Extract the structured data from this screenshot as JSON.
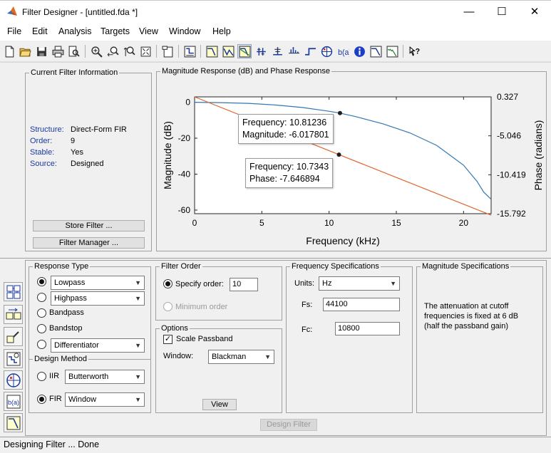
{
  "window": {
    "title": "Filter Designer -  [untitled.fda *]",
    "minimize": "—",
    "maximize": "☐",
    "close": "✕"
  },
  "menu": [
    "File",
    "Edit",
    "Analysis",
    "Targets",
    "View",
    "Window",
    "Help"
  ],
  "toolbar_icons": [
    "new-icon",
    "open-icon",
    "save-icon",
    "print-icon",
    "print-preview-icon",
    "zoom-in-icon",
    "zoom-x-icon",
    "zoom-y-icon",
    "full-view-icon",
    "new-figure-icon",
    "filter-specs-icon",
    "magnitude-icon",
    "phase-icon",
    "mag-phase-icon",
    "group-delay-icon",
    "phase-delay-icon",
    "impulse-icon",
    "step-icon",
    "pole-zero-icon",
    "coefficients-icon",
    "info-icon",
    "magnitude-estimate-icon",
    "noise-power-icon",
    "whats-this-icon"
  ],
  "current_filter": {
    "title": "Current Filter Information",
    "rows": [
      {
        "label": "Structure:",
        "value": "Direct-Form FIR"
      },
      {
        "label": "Order:",
        "value": "9"
      },
      {
        "label": "Stable:",
        "value": "Yes"
      },
      {
        "label": "Source:",
        "value": "Designed"
      }
    ],
    "store_button": "Store Filter ...",
    "manager_button": "Filter Manager ..."
  },
  "plot": {
    "title": "Magnitude Response (dB) and Phase Response",
    "xlabel": "Frequency (kHz)",
    "ylabel_left": "Magnitude (dB)",
    "ylabel_right": "Phase (radians)",
    "x_ticks": [
      "0",
      "5",
      "10",
      "15",
      "20"
    ],
    "y_left_ticks": [
      "0",
      "-20",
      "-40",
      "-60"
    ],
    "y_right_ticks": [
      "0.327",
      "-5.046",
      "-10.419",
      "-15.792"
    ],
    "callout1": {
      "line1": "Frequency: 10.81236",
      "line2": "Magnitude: -6.017801"
    },
    "callout2": {
      "line1": "Frequency: 10.7343",
      "line2": "Phase: -7.646894"
    },
    "magnitude_color": "#2f78b7",
    "phase_color": "#e0632a"
  },
  "chart_data": {
    "type": "line",
    "xlim": [
      0,
      22.05
    ],
    "ylim": [
      -62,
      3
    ],
    "y2lim": [
      -15.792,
      0.327
    ],
    "grid": false,
    "series": [
      {
        "axis": "left",
        "x": [
          0,
          2,
          4,
          6,
          8,
          10,
          10.81236,
          12,
          14,
          16,
          18,
          20,
          21,
          21.5,
          22.05
        ],
        "y": [
          0,
          -0.2,
          -0.6,
          -1.5,
          -2.9,
          -5.0,
          -6.017801,
          -8.0,
          -12.0,
          -17.0,
          -24.0,
          -35.0,
          -44.0,
          -50.0,
          -54.0
        ]
      },
      {
        "axis": "right",
        "x": [
          0,
          10.7343,
          22.05
        ],
        "y": [
          0.327,
          -7.646894,
          -16.0
        ]
      }
    ],
    "datatips": [
      {
        "x": 10.81236,
        "y": -6.017801,
        "axis": "left"
      },
      {
        "x": 10.7343,
        "y": -7.646894,
        "axis": "right"
      }
    ]
  },
  "response_type": {
    "title": "Response Type",
    "options": [
      {
        "label": "Lowpass",
        "type": "select",
        "selected": true
      },
      {
        "label": "Highpass",
        "type": "select",
        "selected": false
      },
      {
        "label": "Bandpass",
        "type": "text",
        "selected": false
      },
      {
        "label": "Bandstop",
        "type": "text",
        "selected": false
      },
      {
        "label": "Differentiator",
        "type": "select",
        "selected": false
      }
    ]
  },
  "design_method": {
    "title": "Design Method",
    "iir_label": "IIR",
    "iir_value": "Butterworth",
    "fir_label": "FIR",
    "fir_value": "Window"
  },
  "filter_order": {
    "title": "Filter Order",
    "specify_label": "Specify order:",
    "specify_value": "10",
    "minimum_label": "Minimum order"
  },
  "options": {
    "title": "Options",
    "scale_label": "Scale Passband",
    "window_label": "Window:",
    "window_value": "Blackman",
    "view_button": "View"
  },
  "freq_specs": {
    "title": "Frequency Specifications",
    "units_label": "Units:",
    "units_value": "Hz",
    "fs_label": "Fs:",
    "fs_value": "44100",
    "fc_label": "Fc:",
    "fc_value": "10800"
  },
  "mag_specs": {
    "title": "Magnitude Specifications",
    "text": "The attenuation at cutoff frequencies is fixed at 6 dB (half the passband gain)"
  },
  "design_button": "Design Filter",
  "status": "Designing Filter ... Done"
}
